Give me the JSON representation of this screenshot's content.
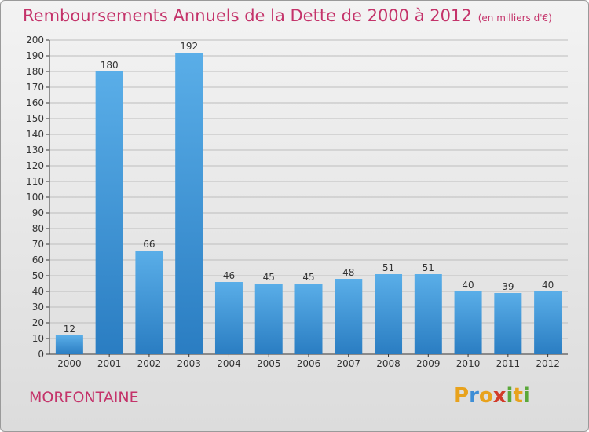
{
  "header": {
    "title": "Remboursements Annuels de la Dette de 2000 à 2012",
    "subtitle": "(en milliers d'€)"
  },
  "commune": "MORFONTAINE",
  "logo": {
    "text": "Proxiti",
    "letters": [
      {
        "char": "P",
        "color": "#e8a21c"
      },
      {
        "char": "r",
        "color": "#3e8ed6"
      },
      {
        "char": "o",
        "color": "#e8a21c"
      },
      {
        "char": "x",
        "color": "#d23b2a"
      },
      {
        "char": "i",
        "color": "#5aa83a"
      },
      {
        "char": "t",
        "color": "#e8a21c"
      },
      {
        "char": "i",
        "color": "#5aa83a"
      }
    ]
  },
  "colors": {
    "title": "#c4336a",
    "bar_light": "#5aaee8",
    "bar_dark": "#2a7dc2",
    "axis": "#333333",
    "grid": "#bdbdbd"
  },
  "chart_data": {
    "type": "bar",
    "categories": [
      "2000",
      "2001",
      "2002",
      "2003",
      "2004",
      "2005",
      "2006",
      "2007",
      "2008",
      "2009",
      "2010",
      "2011",
      "2012"
    ],
    "values": [
      12,
      180,
      66,
      192,
      46,
      45,
      45,
      48,
      51,
      51,
      40,
      39,
      40
    ],
    "ylim": [
      0,
      200
    ],
    "yticks": [
      0,
      10,
      20,
      30,
      40,
      50,
      60,
      70,
      80,
      90,
      100,
      110,
      120,
      130,
      140,
      150,
      160,
      170,
      180,
      190,
      200
    ],
    "grid": true,
    "data_labels": true
  }
}
